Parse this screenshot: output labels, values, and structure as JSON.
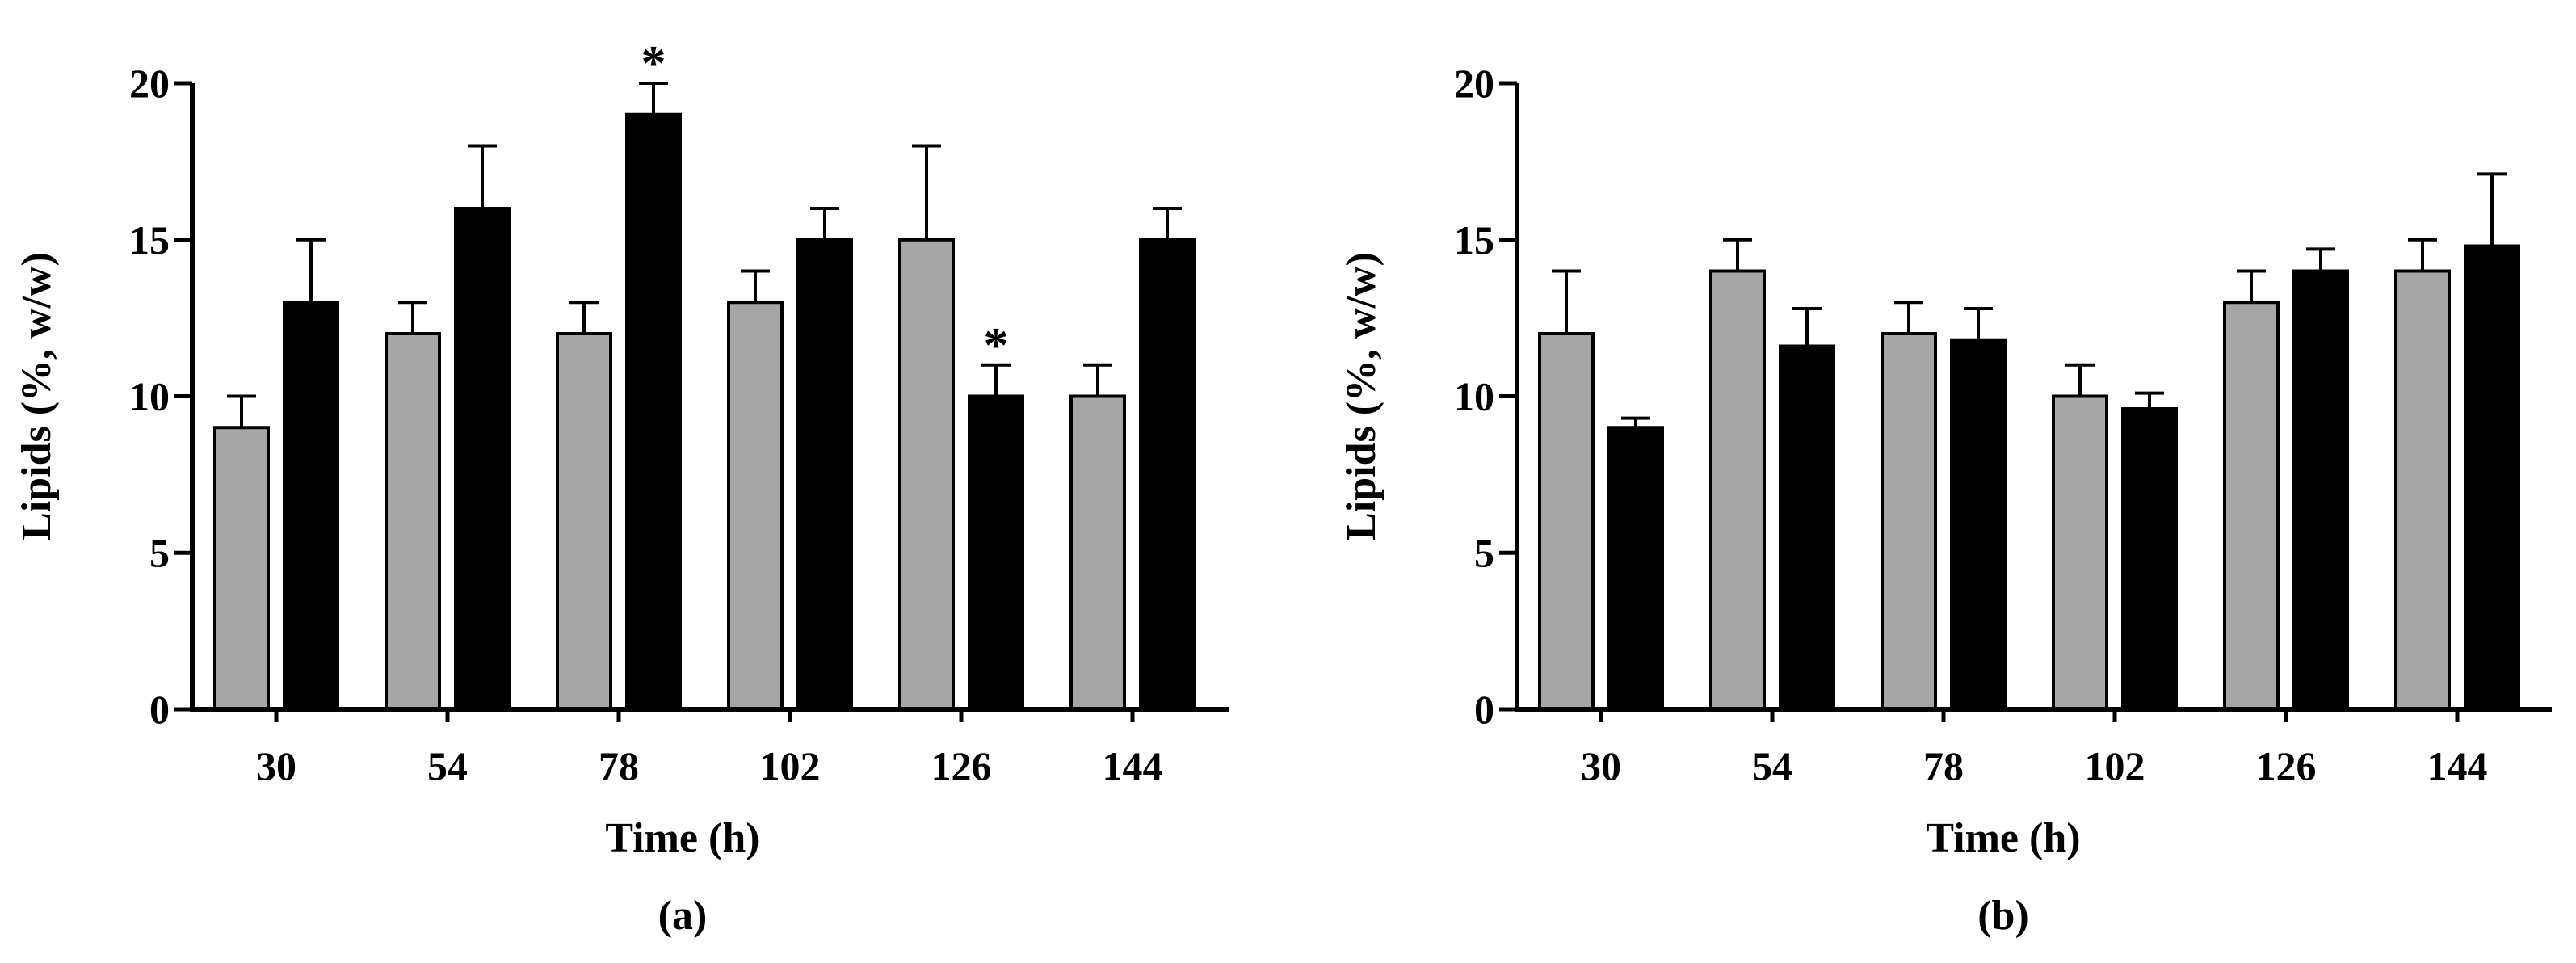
{
  "chart_data": [
    {
      "type": "bar",
      "panel_label": "(a)",
      "xlabel": "Time (h)",
      "ylabel": "Lipids (%, w/w)",
      "categories": [
        "30",
        "54",
        "78",
        "102",
        "126",
        "144"
      ],
      "ylim": [
        0,
        20
      ],
      "yticks": [
        "0",
        "5",
        "10",
        "15",
        "20"
      ],
      "grid": false,
      "legend": "none",
      "series": [
        {
          "color": "#a6a6a6",
          "values": [
            9,
            12,
            12,
            13,
            15,
            10
          ],
          "errors": [
            1,
            1,
            1,
            1,
            3,
            1
          ],
          "annotations": [
            "",
            "",
            "",
            "",
            "",
            ""
          ]
        },
        {
          "color": "#000000",
          "values": [
            13,
            16,
            19,
            15,
            10,
            15
          ],
          "errors": [
            2,
            2,
            1,
            1,
            1,
            1
          ],
          "annotations": [
            "",
            "",
            "*",
            "",
            "*",
            ""
          ]
        }
      ]
    },
    {
      "type": "bar",
      "panel_label": "(b)",
      "xlabel": "Time (h)",
      "ylabel": "Lipids (%, w/w)",
      "categories": [
        "30",
        "54",
        "78",
        "102",
        "126",
        "144"
      ],
      "ylim": [
        0,
        20
      ],
      "yticks": [
        "0",
        "5",
        "10",
        "15",
        "20"
      ],
      "grid": false,
      "legend": "none",
      "series": [
        {
          "color": "#a6a6a6",
          "values": [
            12,
            14,
            12,
            10,
            13,
            14
          ],
          "errors": [
            2,
            1,
            1,
            1,
            1,
            1
          ],
          "annotations": [
            "",
            "",
            "",
            "",
            "",
            ""
          ]
        },
        {
          "color": "#000000",
          "values": [
            9,
            11.6,
            11.8,
            9.6,
            14,
            14.8
          ],
          "errors": [
            0.3,
            1.2,
            1,
            0.5,
            0.7,
            2.3
          ],
          "annotations": [
            "",
            "",
            "",
            "",
            "",
            ""
          ]
        }
      ]
    }
  ]
}
